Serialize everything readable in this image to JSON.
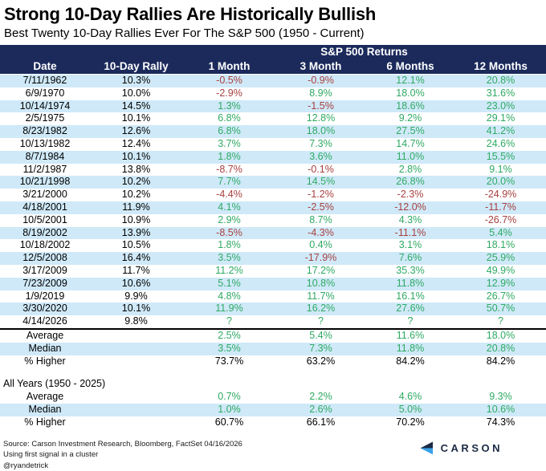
{
  "chart_data": {
    "type": "table",
    "title": "Strong 10-Day Rallies Are Historically Bullish",
    "subtitle": "Best Twenty 10-Day Rallies Ever For The S&P 500 (1950 - Current)",
    "group_header": "S&P 500 Returns",
    "columns": [
      "Date",
      "10-Day Rally",
      "1 Month",
      "3 Month",
      "6 Months",
      "12 Months"
    ],
    "rows": [
      {
        "date": "7/11/1962",
        "rally": "10.3%",
        "m1": "-0.5%",
        "m3": "-0.9%",
        "m6": "12.1%",
        "m12": "20.8%"
      },
      {
        "date": "6/9/1970",
        "rally": "10.0%",
        "m1": "-2.9%",
        "m3": "8.9%",
        "m6": "18.0%",
        "m12": "31.6%"
      },
      {
        "date": "10/14/1974",
        "rally": "14.5%",
        "m1": "1.3%",
        "m3": "-1.5%",
        "m6": "18.6%",
        "m12": "23.0%"
      },
      {
        "date": "2/5/1975",
        "rally": "10.1%",
        "m1": "6.8%",
        "m3": "12.8%",
        "m6": "9.2%",
        "m12": "29.1%"
      },
      {
        "date": "8/23/1982",
        "rally": "12.6%",
        "m1": "6.8%",
        "m3": "18.0%",
        "m6": "27.5%",
        "m12": "41.2%"
      },
      {
        "date": "10/13/1982",
        "rally": "12.4%",
        "m1": "3.7%",
        "m3": "7.3%",
        "m6": "14.7%",
        "m12": "24.6%"
      },
      {
        "date": "8/7/1984",
        "rally": "10.1%",
        "m1": "1.8%",
        "m3": "3.6%",
        "m6": "11.0%",
        "m12": "15.5%"
      },
      {
        "date": "11/2/1987",
        "rally": "13.8%",
        "m1": "-8.7%",
        "m3": "-0.1%",
        "m6": "2.8%",
        "m12": "9.1%"
      },
      {
        "date": "10/21/1998",
        "rally": "10.2%",
        "m1": "7.7%",
        "m3": "14.5%",
        "m6": "26.8%",
        "m12": "20.0%"
      },
      {
        "date": "3/21/2000",
        "rally": "10.2%",
        "m1": "-4.4%",
        "m3": "-1.2%",
        "m6": "-2.3%",
        "m12": "-24.9%"
      },
      {
        "date": "4/18/2001",
        "rally": "11.9%",
        "m1": "4.1%",
        "m3": "-2.5%",
        "m6": "-12.0%",
        "m12": "-11.7%"
      },
      {
        "date": "10/5/2001",
        "rally": "10.9%",
        "m1": "2.9%",
        "m3": "8.7%",
        "m6": "4.3%",
        "m12": "-26.7%"
      },
      {
        "date": "8/19/2002",
        "rally": "13.9%",
        "m1": "-8.5%",
        "m3": "-4.3%",
        "m6": "-11.1%",
        "m12": "5.4%"
      },
      {
        "date": "10/18/2002",
        "rally": "10.5%",
        "m1": "1.8%",
        "m3": "0.4%",
        "m6": "3.1%",
        "m12": "18.1%"
      },
      {
        "date": "12/5/2008",
        "rally": "16.4%",
        "m1": "3.5%",
        "m3": "-17.9%",
        "m6": "7.6%",
        "m12": "25.9%"
      },
      {
        "date": "3/17/2009",
        "rally": "11.7%",
        "m1": "11.2%",
        "m3": "17.2%",
        "m6": "35.3%",
        "m12": "49.9%"
      },
      {
        "date": "7/23/2009",
        "rally": "10.6%",
        "m1": "5.1%",
        "m3": "10.8%",
        "m6": "11.8%",
        "m12": "12.9%"
      },
      {
        "date": "1/9/2019",
        "rally": "9.9%",
        "m1": "4.8%",
        "m3": "11.7%",
        "m6": "16.1%",
        "m12": "26.7%"
      },
      {
        "date": "3/30/2020",
        "rally": "10.1%",
        "m1": "11.9%",
        "m3": "16.2%",
        "m6": "27.6%",
        "m12": "50.7%"
      },
      {
        "date": "4/14/2026",
        "rally": "9.8%",
        "m1": "?",
        "m3": "?",
        "m6": "?",
        "m12": "?"
      }
    ],
    "summary": [
      {
        "label": "Average",
        "values": [
          "2.5%",
          "5.4%",
          "11.6%",
          "18.0%"
        ],
        "color": "green"
      },
      {
        "label": "Median",
        "values": [
          "3.5%",
          "7.3%",
          "11.8%",
          "20.8%"
        ],
        "color": "green"
      },
      {
        "label": "% Higher",
        "values": [
          "73.7%",
          "63.2%",
          "84.2%",
          "84.2%"
        ],
        "color": "black"
      }
    ],
    "all_years_label": "All Years (1950 - 2025)",
    "all_years": [
      {
        "label": "Average",
        "values": [
          "0.7%",
          "2.2%",
          "4.6%",
          "9.3%"
        ],
        "color": "green"
      },
      {
        "label": "Median",
        "values": [
          "1.0%",
          "2.6%",
          "5.0%",
          "10.6%"
        ],
        "color": "green"
      },
      {
        "label": "% Higher",
        "values": [
          "60.7%",
          "66.1%",
          "70.2%",
          "74.3%"
        ],
        "color": "black"
      }
    ]
  },
  "footer": {
    "source_line1": "Source: Carson Investment Research, Bloomberg, FactSet 04/16/2026",
    "source_line2": "Using first signal in a cluster",
    "handle": "@ryandetrick",
    "logo_text": "CARSON"
  },
  "colors": {
    "header_bg": "#1b2a5b",
    "row_stripe": "#cfe9f8",
    "positive_green": "#2fa963",
    "negative_red": "#a8403f",
    "logo_navy": "#1b2a44",
    "logo_blue": "#3ba2e8"
  }
}
